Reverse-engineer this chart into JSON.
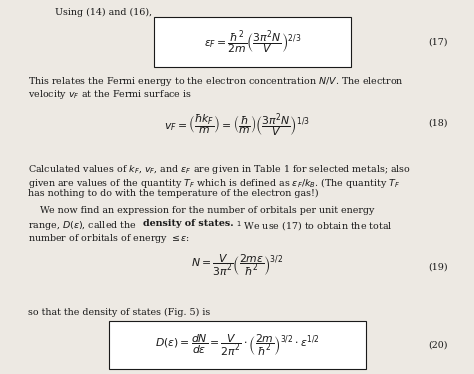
{
  "background_color": "#ede9e3",
  "text_color": "#1a1a1a",
  "title_line": "Using (14) and (16),",
  "eq17_latex": "$\\epsilon_F = \\dfrac{\\hbar^2}{2m}\\left(\\dfrac{3\\pi^2 N}{V}\\right)^{2/3}$",
  "eq17_num": "(17)",
  "eq18_latex": "$v_F = \\left(\\dfrac{\\hbar k_F}{m}\\right) = \\left(\\dfrac{\\hbar}{m}\\right)\\left(\\dfrac{3\\pi^2 N}{V}\\right)^{1/3}$",
  "eq18_num": "(18)",
  "eq19_latex": "$N = \\dfrac{V}{3\\pi^2}\\left(\\dfrac{2m\\epsilon}{\\hbar^2}\\right)^{3/2}$",
  "eq19_num": "(19)",
  "eq20_latex": "$D(\\epsilon) = \\dfrac{dN}{d\\epsilon} = \\dfrac{V}{2\\pi^2}\\cdot\\left(\\dfrac{2m}{\\hbar^2}\\right)^{3/2}\\cdot\\epsilon^{1/2}$",
  "eq20_num": "(20)",
  "box_color": "#ffffff",
  "box_edge_color": "#1a1a1a",
  "fs_body": 6.8,
  "fs_eq": 7.8
}
